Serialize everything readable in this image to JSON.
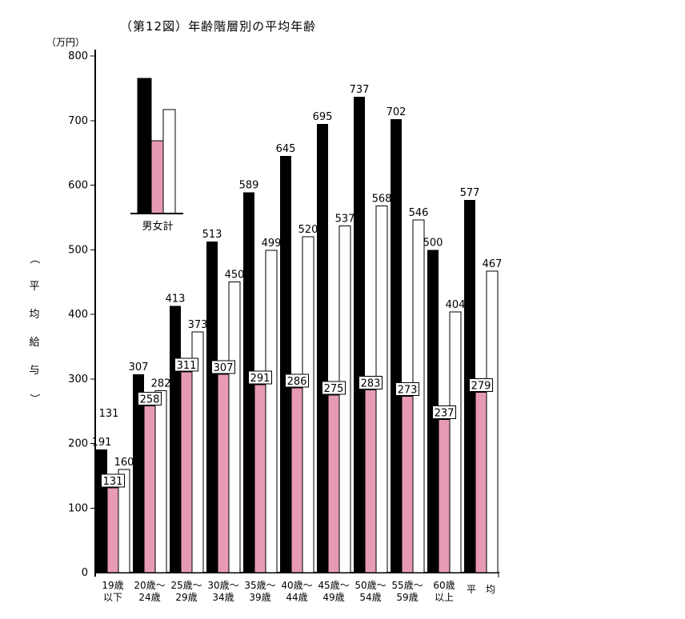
{
  "title": "（第12図）年齢階層別の平均年齢",
  "y_axis": {
    "unit_label": "（万円）",
    "title_vertical": "（平均給与）",
    "min": 0,
    "max": 800,
    "step": 100
  },
  "x_axis": {
    "categories_lines": [
      [
        "19歳",
        "以下"
      ],
      [
        "20歳～",
        "24歳"
      ],
      [
        "25歳～",
        "29歳"
      ],
      [
        "30歳～",
        "34歳"
      ],
      [
        "35歳～",
        "39歳"
      ],
      [
        "40歳～",
        "44歳"
      ],
      [
        "45歳～",
        "49歳"
      ],
      [
        "50歳～",
        "54歳"
      ],
      [
        "55歳～",
        "59歳"
      ],
      [
        "60歳",
        "以上"
      ],
      [
        "平　均"
      ]
    ]
  },
  "legend": {
    "label": "男女計"
  },
  "colors": {
    "bar_male": "#000000",
    "bar_female": "#e69ab4",
    "bar_total": "#ffffff",
    "outline": "#000000",
    "background": "#ffffff"
  },
  "chart_data": {
    "type": "bar",
    "title": "（第12図）年齢階層別の平均年齢",
    "categories": [
      "19歳以下",
      "20歳～24歳",
      "25歳～29歳",
      "30歳～34歳",
      "35歳～39歳",
      "40歳～44歳",
      "45歳～49歳",
      "50歳～54歳",
      "55歳～59歳",
      "60歳以上",
      "平均"
    ],
    "series": [
      {
        "name": "男",
        "color": "#000000",
        "values": [
          191,
          307,
          413,
          513,
          589,
          645,
          695,
          737,
          702,
          500,
          577
        ]
      },
      {
        "name": "女",
        "color": "#e69ab4",
        "values": [
          131,
          258,
          311,
          307,
          291,
          286,
          275,
          283,
          273,
          237,
          279
        ]
      },
      {
        "name": "計",
        "color": "#ffffff",
        "values": [
          160,
          282,
          373,
          450,
          499,
          520,
          537,
          568,
          546,
          404,
          467
        ]
      }
    ],
    "ylabel": "（平均給与）（万円）",
    "ylim": [
      0,
      800
    ],
    "grid": false,
    "legend_label": "男女計",
    "legend_position": "upper-left-inside",
    "annotations": [
      {
        "text": "131",
        "note": "stray duplicate label above first group"
      }
    ]
  }
}
